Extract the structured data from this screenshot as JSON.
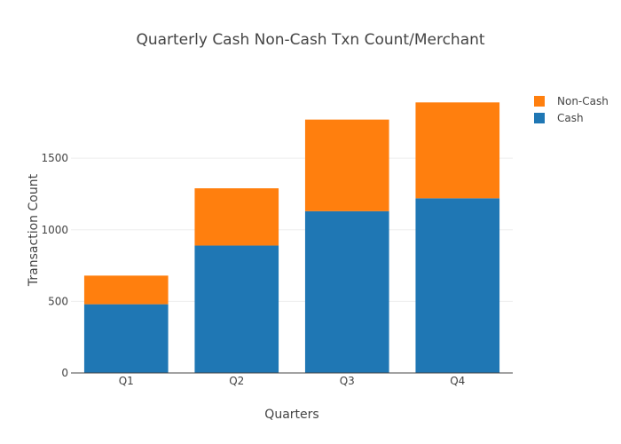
{
  "chart_data": {
    "type": "bar",
    "stacked": true,
    "title": "Quarterly Cash Non-Cash Txn Count/Merchant",
    "xlabel": "Quarters",
    "ylabel": "Transaction Count",
    "categories": [
      "Q1",
      "Q2",
      "Q3",
      "Q4"
    ],
    "series": [
      {
        "name": "Cash",
        "color": "#1f77b4",
        "values": [
          480,
          890,
          1130,
          1220
        ]
      },
      {
        "name": "Non-Cash",
        "color": "#ff7f0e",
        "values": [
          200,
          400,
          640,
          670
        ]
      }
    ],
    "ylim": [
      0,
      1985
    ],
    "yticks": [
      0,
      500,
      1000,
      1500
    ],
    "grid": true,
    "legend": "top-right"
  }
}
